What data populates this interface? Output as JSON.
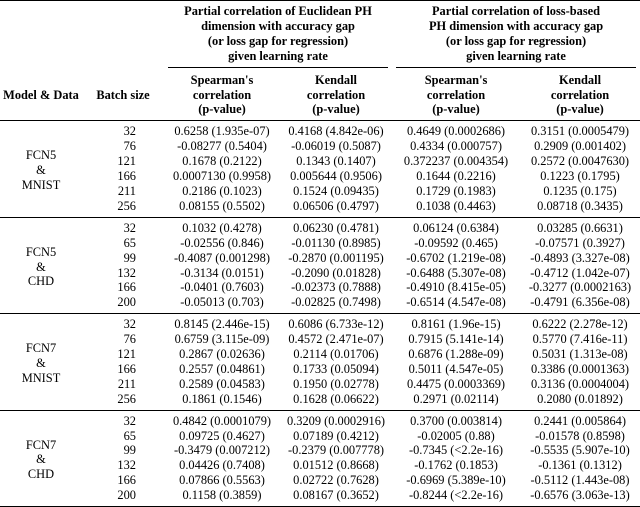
{
  "table": {
    "group_headers": [
      [
        "Partial correlation of Euclidean PH",
        "dimension with accuracy gap",
        "(or loss gap for regression)",
        "given learning rate"
      ],
      [
        "Partial correlation of loss-based",
        "PH dimension with accuracy gap",
        "(or loss gap for regression)",
        "given learning rate"
      ]
    ],
    "column_headers": [
      [
        "Model & Data"
      ],
      [
        "Batch size"
      ],
      [
        "Spearman's",
        "correlation",
        "(p-value)"
      ],
      [
        "Kendall",
        "correlation",
        "(p-value)"
      ],
      [
        "Spearman's",
        "correlation",
        "(p-value)"
      ],
      [
        "Kendall",
        "correlation",
        "(p-value)"
      ]
    ],
    "groups": [
      {
        "label": [
          "FCN5",
          "&",
          "MNIST"
        ],
        "rows": [
          [
            "32",
            "0.6258 (1.935e-07)",
            "0.4168 (4.842e-06)",
            "0.4649 (0.0002686)",
            "0.3151 (0.0005479)"
          ],
          [
            "76",
            "-0.08277 (0.5404)",
            "-0.06019 (0.5087)",
            "0.4334 (0.000757)",
            "0.2909 (0.001402)"
          ],
          [
            "121",
            "0.1678 (0.2122)",
            "0.1343 (0.1407)",
            "0.372237 (0.004354)",
            "0.2572 (0.0047630)"
          ],
          [
            "166",
            "0.0007130 (0.9958)",
            "0.005644 (0.9506)",
            "0.1644 (0.2216)",
            "0.1223 (0.1795)"
          ],
          [
            "211",
            "0.2186 (0.1023)",
            "0.1524 (0.09435)",
            "0.1729 (0.1983)",
            "0.1235 (0.175)"
          ],
          [
            "256",
            "0.08155 (0.5502)",
            "0.06506 (0.4797)",
            "0.1038 (0.4463)",
            "0.08718 (0.3435)"
          ]
        ]
      },
      {
        "label": [
          "FCN5",
          "&",
          "CHD"
        ],
        "rows": [
          [
            "32",
            "0.1032 (0.4278)",
            "0.06230 (0.4781)",
            "0.06124 (0.6384)",
            "0.03285 (0.6631)"
          ],
          [
            "65",
            "-0.02556 (0.846)",
            "-0.01130 (0.8985)",
            "-0.09592 (0.465)",
            "-0.07571 (0.3927)"
          ],
          [
            "99",
            "-0.4087 (0.001298)",
            "-0.2870 (0.001195)",
            "-0.6702 (1.219e-08)",
            "-0.4893 (3.327e-08)"
          ],
          [
            "132",
            "-0.3134 (0.0151)",
            "-0.2090 (0.01828)",
            "-0.6488 (5.307e-08)",
            "-0.4712 (1.042e-07)"
          ],
          [
            "166",
            "-0.0401 (0.7603)",
            "-0.02373 (0.7888)",
            "-0.4910 (8.415e-05)",
            "-0.3277 (0.0002163)"
          ],
          [
            "200",
            "-0.05013 (0.703)",
            "-0.02825 (0.7498)",
            "-0.6514 (4.547e-08)",
            "-0.4791 (6.356e-08)"
          ]
        ]
      },
      {
        "label": [
          "FCN7",
          "&",
          "MNIST"
        ],
        "rows": [
          [
            "32",
            "0.8145 (2.446e-15)",
            "0.6086 (6.733e-12)",
            "0.8161 (1.96e-15)",
            "0.6222 (2.278e-12)"
          ],
          [
            "76",
            "0.6759 (3.115e-09)",
            "0.4572 (2.471e-07)",
            "0.7915 (5.141e-14)",
            "0.5770 (7.416e-11)"
          ],
          [
            "121",
            "0.2867 (0.02636)",
            "0.2114 (0.01706)",
            "0.6876 (1.288e-09)",
            "0.5031 (1.313e-08)"
          ],
          [
            "166",
            "0.2557 (0.04861)",
            "0.1733 (0.05094)",
            "0.5011 (4.547e-05)",
            "0.3386 (0.0001363)"
          ],
          [
            "211",
            "0.2589 (0.04583)",
            "0.1950 (0.02778)",
            "0.4475 (0.0003369)",
            "0.3136 (0.0004004)"
          ],
          [
            "256",
            "0.1861 (0.1546)",
            "0.1628 (0.06622)",
            "0.2971 (0.02114)",
            "0.2080 (0.01892)"
          ]
        ]
      },
      {
        "label": [
          "FCN7",
          "&",
          "CHD"
        ],
        "rows": [
          [
            "32",
            "0.4842 (0.0001079)",
            "0.3209 (0.0002916)",
            "0.3700 (0.003814)",
            "0.2441 (0.005864)"
          ],
          [
            "65",
            "0.09725 (0.4627)",
            "0.07189 (0.4212)",
            "-0.02005 (0.88)",
            "-0.01578 (0.8598)"
          ],
          [
            "99",
            "-0.3479 (0.007212)",
            "-0.2379 (0.007778)",
            "-0.7345 (<2.2e-16)",
            "-0.5535 (5.907e-10)"
          ],
          [
            "132",
            "0.04426 (0.7408)",
            "0.01512 (0.8668)",
            "-0.1762 (0.1853)",
            "-0.1361 (0.1312)"
          ],
          [
            "166",
            "0.07866 (0.5563)",
            "0.02722 (0.7628)",
            "-0.6969 (5.389e-10)",
            "-0.5112 (1.443e-08)"
          ],
          [
            "200",
            "0.1158 (0.3859)",
            "0.08167 (0.3652)",
            "-0.8244 (<2.2e-16)",
            "-0.6576 (3.063e-13)"
          ]
        ]
      }
    ]
  }
}
